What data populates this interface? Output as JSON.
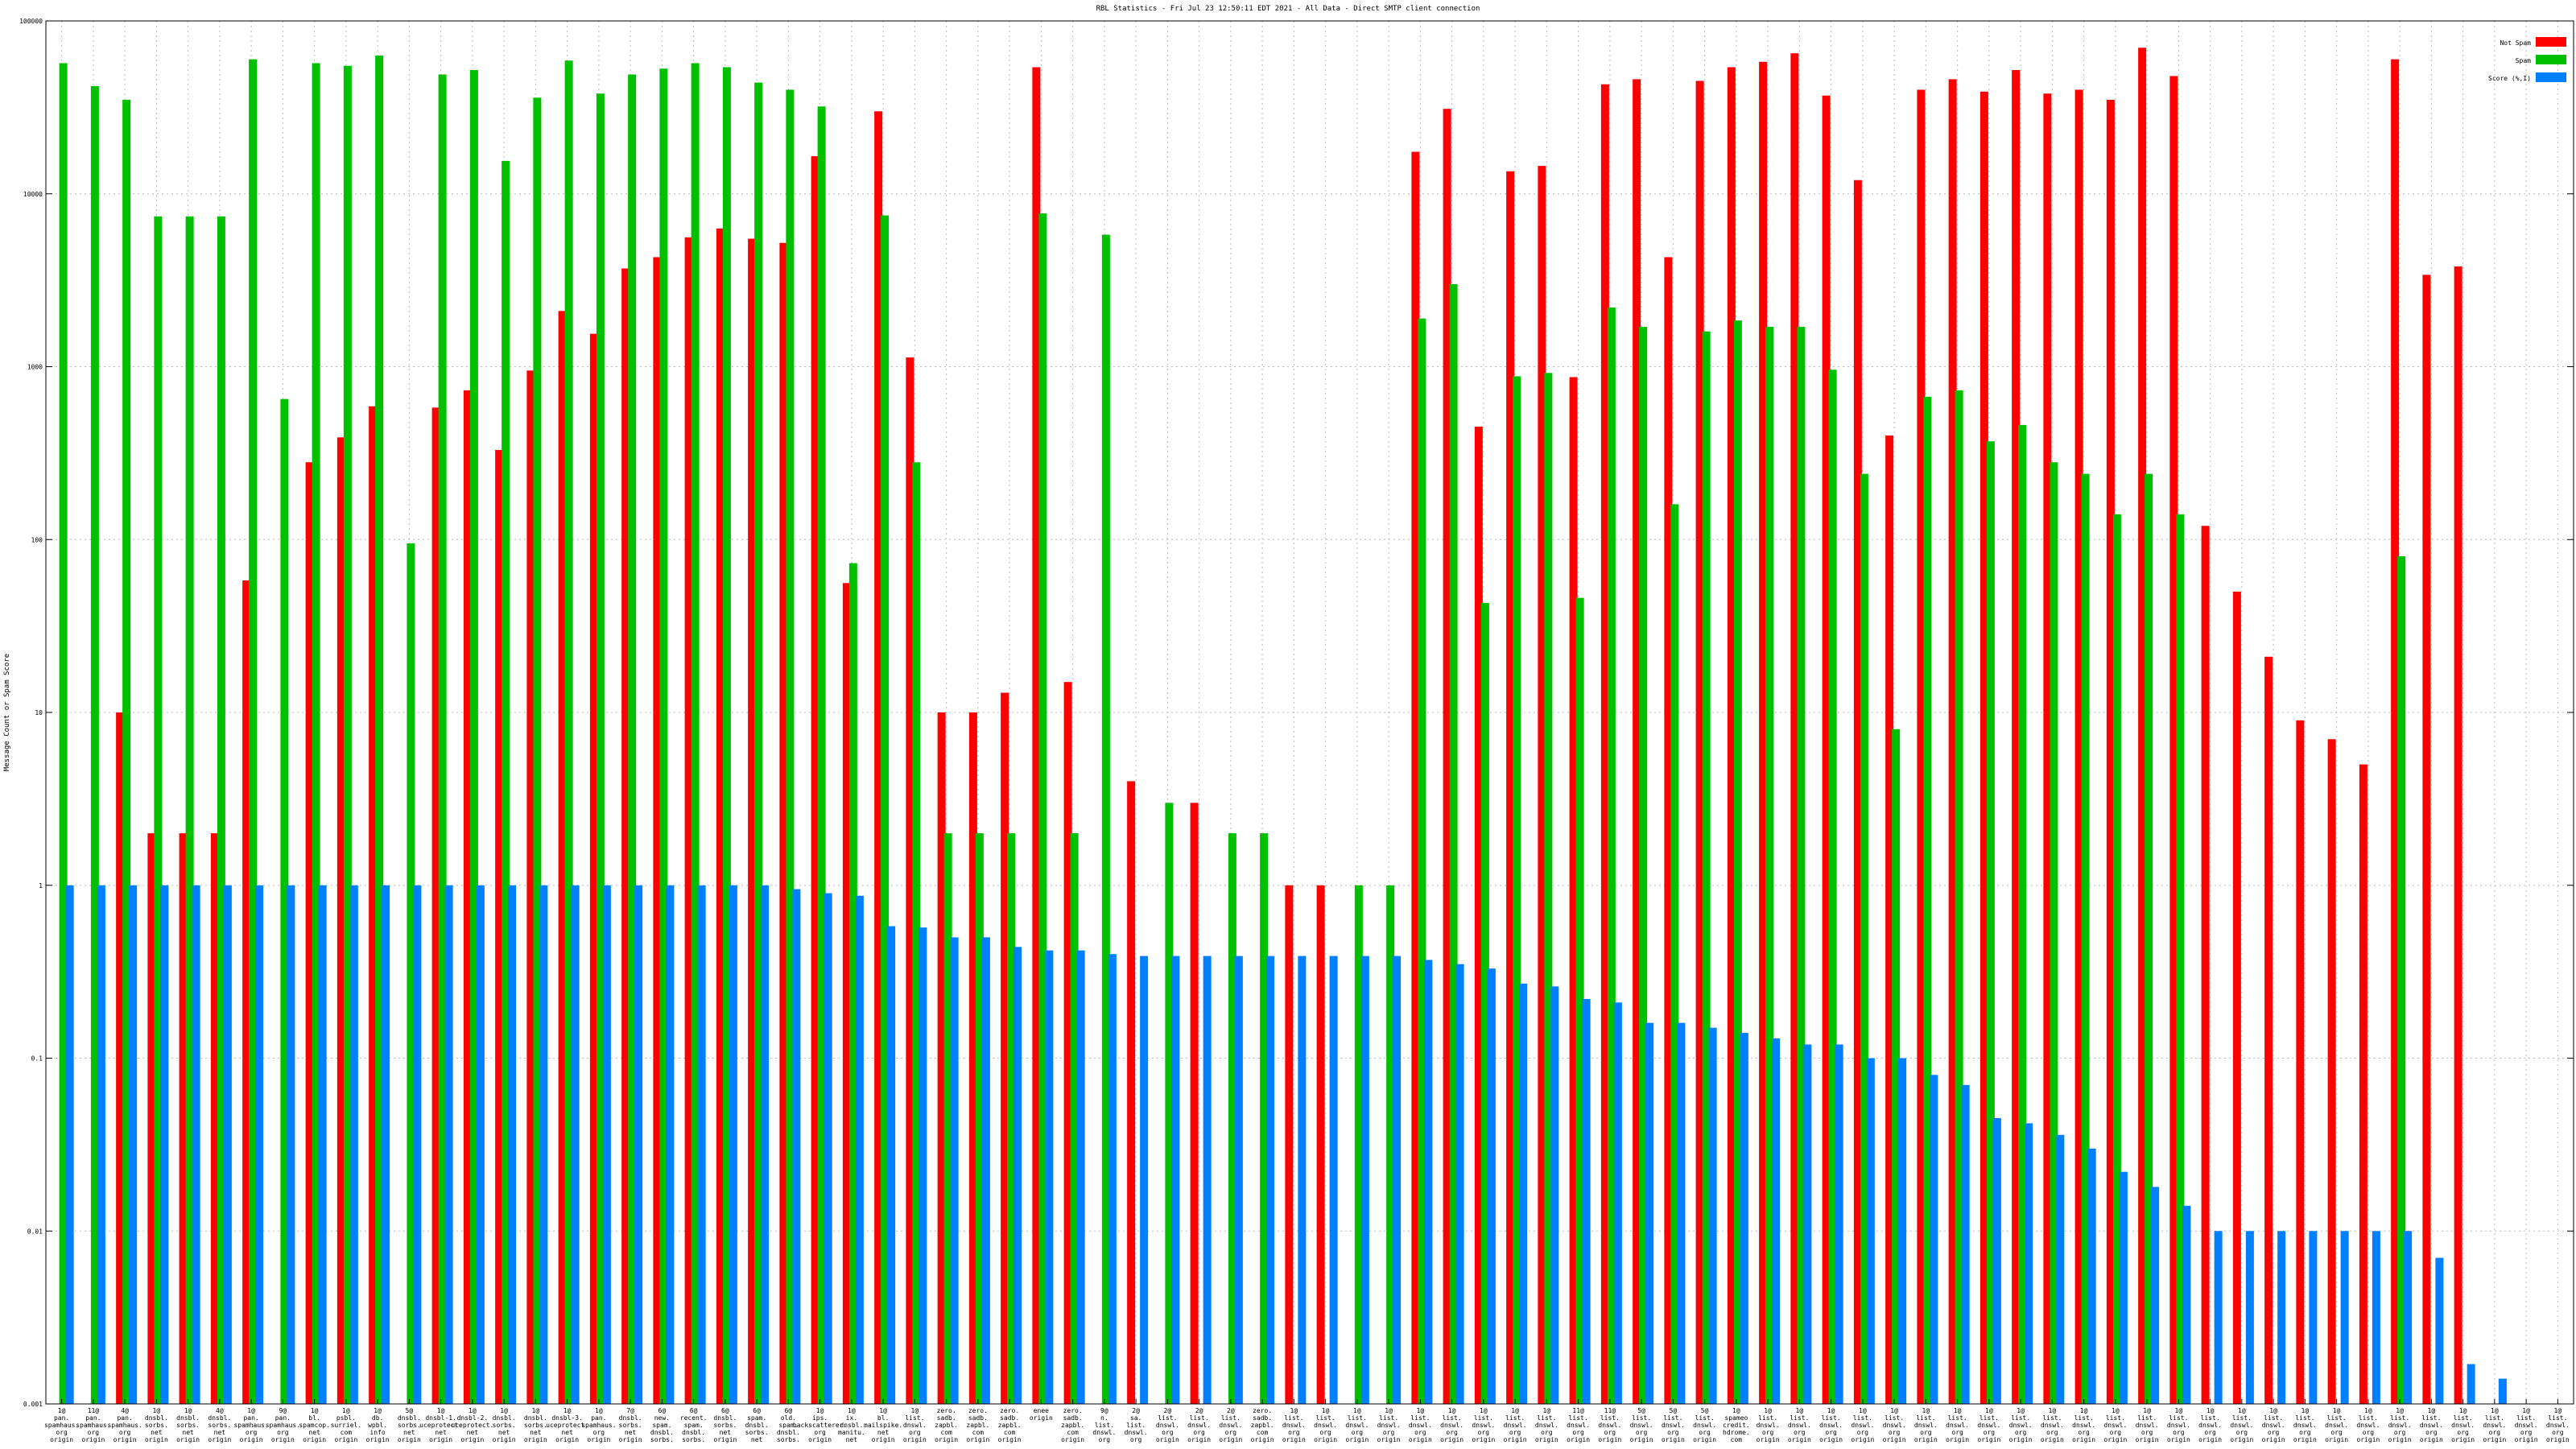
{
  "chart_data": {
    "type": "bar",
    "title": "RBL Statistics - Fri Jul 23 12:50:11 EDT 2021 - All Data - Direct SMTP client connection",
    "ylabel": "Message Count or Spam Score",
    "xlabel": "",
    "yscale": "log",
    "ylim": [
      0.001,
      100000
    ],
    "yticks": [
      "0.001",
      "0.01",
      "0.1",
      "1",
      "10",
      "100",
      "1000",
      "10000",
      "100000"
    ],
    "grid": true,
    "legend_position": "top-right",
    "colors": {
      "not_spam": "#ff0000",
      "spam": "#00c000",
      "score": "#0080ff"
    },
    "categories": [
      "1@ pan. spamhaus. org origin",
      "11@ pan. spamhaus. org origin",
      "4@ pan. spamhaus. org origin",
      "1@ dnsbl. sorbs. net origin",
      "1@ dnsbl. sorbs. net origin",
      "4@ dnsbl. sorbs. net origin",
      "1@ pan. spamhaus. org origin",
      "9@ pan. spamhaus. org origin",
      "1@ bl. spamcop. net origin",
      "1@ psbl. surriel. com origin",
      "1@ db. wpbl. info origin",
      "5@ dnsbl. sorbs. net origin",
      "1@ dnsbl-1. uceprotect. net origin",
      "1@ dnsbl-2. uceprotect. net origin",
      "1@ dnsbl. sorbs. net origin",
      "1@ dnsbl. sorbs. net origin",
      "1@ dnsbl-3. uceprotect. net origin",
      "1@ pan. spamhaus. org origin",
      "7@ dnsbl. sorbs. net origin",
      "6@ new. spam. dnsbl. sorbs. net origin",
      "6@ recent. spam. dnsbl. sorbs. net origin",
      "6@ dnsbl. sorbs. net origin",
      "6@ spam. dnsbl. sorbs. net origin",
      "6@ old. spam. dnsbl. sorbs. net origin",
      "1@ ips. backscatterer. org origin",
      "1@ ix. dnsbl. manitu. net origin",
      "1@ bl. mailspike. net origin",
      "1@ list. dnswl. org origin",
      "zero. sadb. zapbl. com origin",
      "zero. sadb. zapbl. com origin",
      "zero. sadb. zapbl. com origin",
      "enee origin",
      "zero. sadb. zapbl. com origin",
      "9@ n. list. dnswl. org origin",
      "2@ sa. list. dnswl. org origin",
      "2@ list. dnswl. org origin",
      "2@ list. dnswl. org origin",
      "2@ list. dnswl. org origin",
      "zero. sadb. zapbl. com origin",
      "1@ list. dnswl. org origin",
      "1@ list. dnswl. org origin",
      "1@ list. dnswl. org origin",
      "1@ list. dnswl. org origin",
      "1@ list. dnswl. org origin",
      "1@ list. dnswl. org origin",
      "1@ list. dnswl. org origin",
      "1@ list. dnswl. org origin",
      "1@ list. dnswl. org origin",
      "11@ list. dnswl. org origin",
      "11@ list. dnswl. org origin",
      "5@ list. dnswl. org origin",
      "5@ list. dnswl. org origin",
      "5@ list. dnswl. org origin",
      "1@ spameo credit. hdrome. com origin",
      "1@ list. dnswl. org origin",
      "1@ list. dnswl. org origin",
      "1@ list. dnswl. org origin",
      "1@ list. dnswl. org origin",
      "1@ list. dnswl. org origin",
      "1@ list. dnswl. org origin",
      "1@ list. dnswl. org origin",
      "1@ list. dnswl. org origin",
      "1@ list. dnswl. org origin",
      "1@ list. dnswl. org origin",
      "1@ list. dnswl. org origin",
      "1@ list. dnswl. org origin",
      "1@ list. dnswl. org origin",
      "1@ list. dnswl. org origin",
      "1@ list. dnswl. org origin",
      "1@ list. dnswl. org origin",
      "1@ list. dnswl. org origin",
      "1@ list. dnswl. org origin",
      "1@ list. dnswl. org origin",
      "1@ list. dnswl. org origin",
      "1@ list. dnswl. org origin",
      "1@ list. dnswl. org origin",
      "1@ list. dnswl. org origin",
      "1@ list. dnswl. org origin",
      "1@ list. dnswl. org origin",
      "1@ list. dnswl. org origin"
    ],
    "series": [
      {
        "name": "Not Spam",
        "values": [
          null,
          null,
          10,
          2,
          2,
          2,
          58,
          null,
          280,
          390,
          590,
          null,
          580,
          730,
          330,
          950,
          2100,
          1550,
          3700,
          4300,
          5600,
          6300,
          5500,
          5200,
          16500,
          56,
          30000,
          1130,
          10,
          10,
          13,
          54000,
          15,
          null,
          4,
          null,
          3,
          null,
          null,
          1,
          1,
          null,
          null,
          17500,
          31000,
          450,
          13500,
          14500,
          870,
          43000,
          46000,
          4300,
          45000,
          54000,
          58000,
          65000,
          37000,
          12000,
          400,
          40000,
          46000,
          39000,
          52000,
          38000,
          40000,
          35000,
          70000,
          48000,
          120,
          50,
          21,
          9,
          7,
          5,
          60000,
          3400,
          3800,
          null,
          null,
          null
        ]
      },
      {
        "name": "Spam",
        "values": [
          57000,
          42000,
          35000,
          7400,
          7400,
          7400,
          60000,
          650,
          57000,
          55000,
          63000,
          95,
          49000,
          52000,
          15500,
          36000,
          59000,
          38000,
          49000,
          53000,
          57000,
          54000,
          44000,
          40000,
          32000,
          73,
          7500,
          280,
          2,
          2,
          2,
          7700,
          2,
          5800,
          null,
          3,
          null,
          2,
          2,
          null,
          null,
          1,
          1,
          1900,
          3000,
          43,
          880,
          920,
          46,
          2200,
          1700,
          160,
          1600,
          1850,
          1700,
          1700,
          960,
          240,
          8,
          670,
          730,
          370,
          460,
          280,
          240,
          140,
          240,
          140,
          null,
          null,
          null,
          null,
          null,
          null,
          80,
          null,
          null,
          null,
          null,
          null
        ]
      },
      {
        "name": "Score (%,I)",
        "values": [
          1,
          1,
          1,
          1,
          1,
          1,
          1,
          1,
          1,
          1,
          1,
          1,
          1,
          1,
          1,
          1,
          1,
          1,
          1,
          1,
          1,
          1,
          1,
          0.95,
          0.9,
          0.87,
          0.58,
          0.57,
          0.5,
          0.5,
          0.44,
          0.42,
          0.42,
          0.4,
          0.39,
          0.39,
          0.39,
          0.39,
          0.39,
          0.39,
          0.39,
          0.39,
          0.39,
          0.37,
          0.35,
          0.33,
          0.27,
          0.26,
          0.22,
          0.21,
          0.16,
          0.16,
          0.15,
          0.14,
          0.13,
          0.12,
          0.12,
          0.1,
          0.1,
          0.08,
          0.07,
          0.045,
          0.042,
          0.036,
          0.03,
          0.022,
          0.018,
          0.014,
          0.01,
          0.01,
          0.01,
          0.01,
          0.01,
          0.01,
          0.01,
          0.007,
          0.0017,
          0.0014,
          null,
          null
        ]
      }
    ]
  }
}
